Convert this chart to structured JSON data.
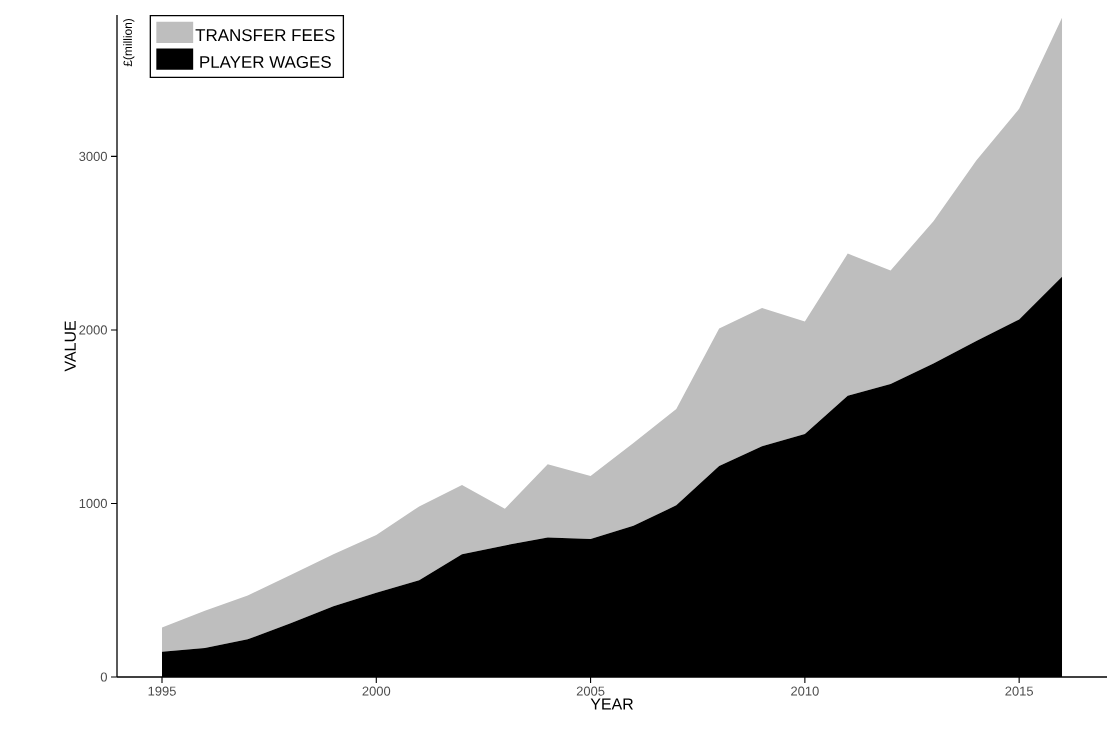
{
  "chart_data": {
    "type": "area",
    "stacked": true,
    "xlabel": "YEAR",
    "ylabel": "VALUE",
    "annotations": [
      "£(million)"
    ],
    "x": [
      1995,
      1996,
      1997,
      1998,
      1999,
      2000,
      2001,
      2002,
      2003,
      2004,
      2005,
      2006,
      2007,
      2008,
      2009,
      2010,
      2011,
      2012,
      2013,
      2014,
      2015,
      2016
    ],
    "series": [
      {
        "name": "PLAYER WAGES",
        "color": "#000000",
        "values": [
          145,
          167,
          217,
          310,
          407,
          485,
          557,
          707,
          758,
          804,
          795,
          872,
          989,
          1216,
          1329,
          1401,
          1620,
          1689,
          1806,
          1936,
          2060,
          2307
        ]
      },
      {
        "name": "TRANSFER FEES",
        "color": "#bebebe",
        "values": [
          140,
          215,
          252,
          278,
          300,
          333,
          426,
          400,
          211,
          422,
          363,
          477,
          556,
          792,
          798,
          648,
          820,
          654,
          820,
          1040,
          1214,
          1492
        ]
      }
    ],
    "xlim": [
      1993.95,
      2017.05
    ],
    "ylim": [
      0,
      3815
    ],
    "xticks": [
      1995,
      2000,
      2005,
      2010,
      2015
    ],
    "yticks": [
      0,
      1000,
      2000,
      3000
    ],
    "legend": "top left",
    "grid": false
  }
}
